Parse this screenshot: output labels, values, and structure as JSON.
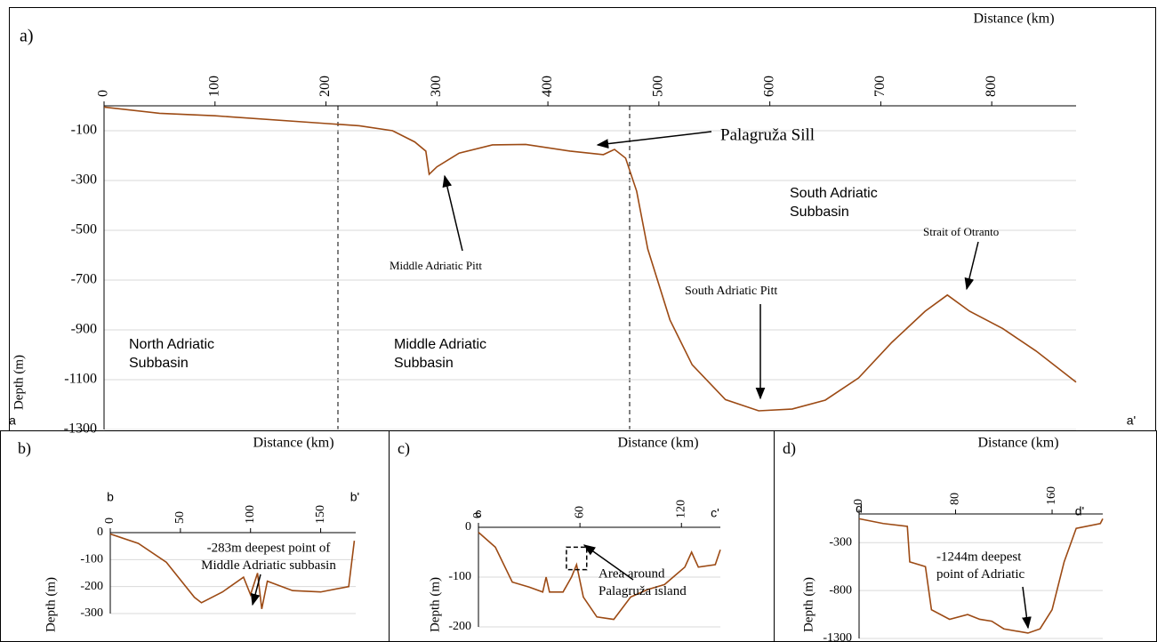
{
  "chart_data": [
    {
      "type": "line",
      "title": "a)",
      "xlabel": "Distance (km)",
      "ylabel": "Depth (m)",
      "x": [
        0,
        50,
        100,
        200,
        230,
        260,
        280,
        290,
        293,
        300,
        320,
        350,
        380,
        420,
        450,
        460,
        470,
        480,
        490,
        510,
        530,
        560,
        590,
        620,
        650,
        680,
        710,
        740,
        760,
        780,
        810,
        840,
        876
      ],
      "series": [
        {
          "color": "#9c4a14",
          "values": [
            -5,
            -30,
            -40,
            -71,
            -80,
            -100,
            -145,
            -182,
            -275,
            -245,
            -190,
            -157,
            -155,
            -182,
            -196,
            -175,
            -210,
            -343,
            -575,
            -860,
            -1040,
            -1180,
            -1225,
            -1218,
            -1182,
            -1093,
            -950,
            -825,
            -760,
            -825,
            -895,
            -985,
            -1110
          ]
        }
      ],
      "xlim": [
        0,
        876
      ],
      "ylim": [
        -1300,
        0
      ],
      "xticks": [
        0,
        100,
        200,
        300,
        400,
        500,
        600,
        700,
        800
      ],
      "yticks": [
        -100,
        -300,
        -500,
        -700,
        -900,
        -1100,
        -1300
      ],
      "grid": true,
      "annotations": [
        {
          "lines": [
            "Palagruža Sill"
          ]
        },
        {
          "lines": [
            "South Adriatic",
            "Subbasin"
          ]
        },
        {
          "lines": [
            "Middle Adriatic Pitt"
          ]
        },
        {
          "lines": [
            "South Adriatic Pitt"
          ]
        },
        {
          "lines": [
            "Strait of Otranto"
          ]
        },
        {
          "lines": [
            "North Adriatic",
            "Subbasin"
          ]
        },
        {
          "lines": [
            "Middle Adriatic",
            "Subbasin"
          ]
        }
      ],
      "end_labels": [
        "a",
        "a'"
      ]
    },
    {
      "type": "line",
      "title": "b)",
      "xlabel": "Distance (km)",
      "ylabel": "Depth (m)",
      "x": [
        0,
        20,
        40,
        60,
        65,
        80,
        95,
        100,
        105,
        108,
        112,
        130,
        150,
        170,
        174
      ],
      "series": [
        {
          "color": "#9c4a14",
          "values": [
            -5,
            -40,
            -110,
            -240,
            -260,
            -220,
            -165,
            -230,
            -150,
            -283,
            -180,
            -215,
            -220,
            -200,
            -30
          ]
        }
      ],
      "xlim": [
        0,
        175
      ],
      "ylim": [
        -300,
        0
      ],
      "xticks": [
        0,
        50,
        100,
        150
      ],
      "yticks": [
        0,
        -100,
        -200,
        -300
      ],
      "grid": true,
      "annotations": [
        {
          "lines": [
            "-283m deepest point of",
            "Middle Adriatic subbasin"
          ]
        }
      ],
      "end_labels": [
        "b",
        "b'"
      ]
    },
    {
      "type": "line",
      "title": "c)",
      "xlabel": "Distance (km)",
      "ylabel": "Depth (m)",
      "x": [
        0,
        10,
        20,
        30,
        38,
        40,
        42,
        50,
        55,
        58,
        62,
        70,
        80,
        90,
        100,
        110,
        122,
        126,
        130,
        140,
        143
      ],
      "series": [
        {
          "color": "#9c4a14",
          "values": [
            -10,
            -40,
            -110,
            -120,
            -130,
            -100,
            -130,
            -130,
            -100,
            -75,
            -140,
            -180,
            -185,
            -140,
            -125,
            -115,
            -80,
            -50,
            -80,
            -75,
            -45
          ]
        }
      ],
      "xlim": [
        0,
        143
      ],
      "ylim": [
        -200,
        0
      ],
      "xticks": [
        0,
        60,
        120
      ],
      "yticks": [
        0,
        -100,
        -200
      ],
      "grid": true,
      "annotations": [
        {
          "lines": [
            "Area around",
            "Palagruža island"
          ]
        }
      ],
      "end_labels": [
        "c",
        "c'"
      ]
    },
    {
      "type": "line",
      "title": "d)",
      "xlabel": "Distance (km)",
      "ylabel": "Depth (m)",
      "x": [
        0,
        20,
        40,
        42,
        55,
        60,
        75,
        90,
        100,
        110,
        120,
        140,
        150,
        160,
        170,
        180,
        200,
        202
      ],
      "series": [
        {
          "color": "#9c4a14",
          "values": [
            -50,
            -100,
            -130,
            -500,
            -550,
            -1000,
            -1100,
            -1050,
            -1100,
            -1120,
            -1200,
            -1244,
            -1200,
            -1000,
            -500,
            -150,
            -100,
            -50
          ]
        }
      ],
      "xlim": [
        0,
        202
      ],
      "ylim": [
        -1300,
        0
      ],
      "xticks": [
        0,
        80,
        160
      ],
      "yticks": [
        -300,
        -800,
        -1300
      ],
      "grid": true,
      "annotations": [
        {
          "lines": [
            "-1244m deepest",
            "point of Adriatic"
          ]
        }
      ],
      "end_labels": [
        "d",
        "d'"
      ]
    }
  ]
}
